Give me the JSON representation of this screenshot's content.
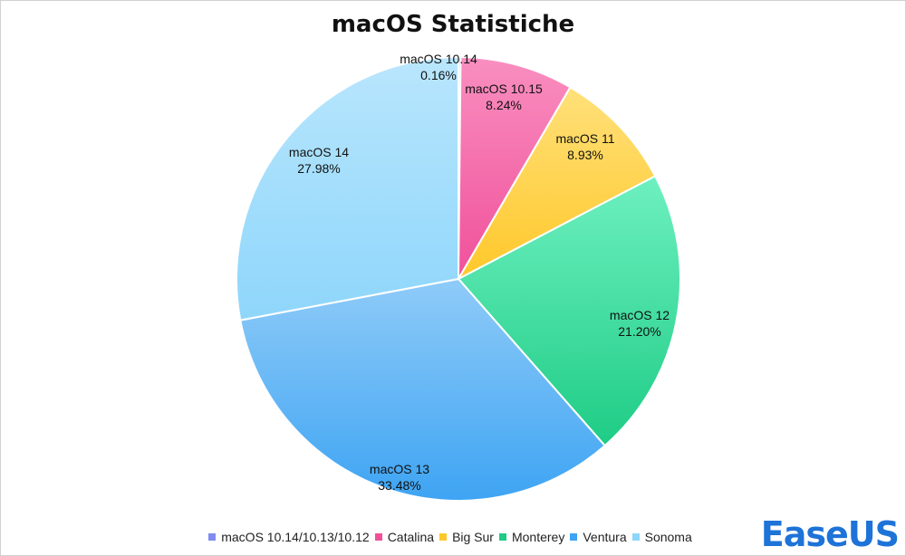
{
  "chart_data": {
    "type": "pie",
    "title": "macOS Statistiche",
    "slices": [
      {
        "label": "macOS 10.14",
        "percent_label": "0.16%",
        "value": 0.16,
        "legend": "macOS 10.14/10.13/10.12",
        "color": "#7f8cf0"
      },
      {
        "label": "macOS 10.15",
        "percent_label": "8.24%",
        "value": 8.24,
        "legend": "Catalina",
        "color": "#f0509a"
      },
      {
        "label": "macOS 11",
        "percent_label": "8.93%",
        "value": 8.93,
        "legend": "Big Sur",
        "color": "#ffc82a"
      },
      {
        "label": "macOS 12",
        "percent_label": "21.20%",
        "value": 21.2,
        "legend": "Monterey",
        "color": "#1ecc85"
      },
      {
        "label": "macOS 13",
        "percent_label": "33.48%",
        "value": 33.48,
        "legend": "Ventura",
        "color": "#3ea4f3"
      },
      {
        "label": "macOS 14",
        "percent_label": "27.98%",
        "value": 27.98,
        "legend": "Sonoma",
        "color": "#8ed6fb"
      }
    ],
    "gradient_light": [
      "#a3adf5",
      "#f98fc0",
      "#ffe07a",
      "#6ef0c0",
      "#8fcbf8",
      "#b9e6fd"
    ],
    "legend_position": "bottom"
  },
  "logo": {
    "text": "EaseUS"
  }
}
